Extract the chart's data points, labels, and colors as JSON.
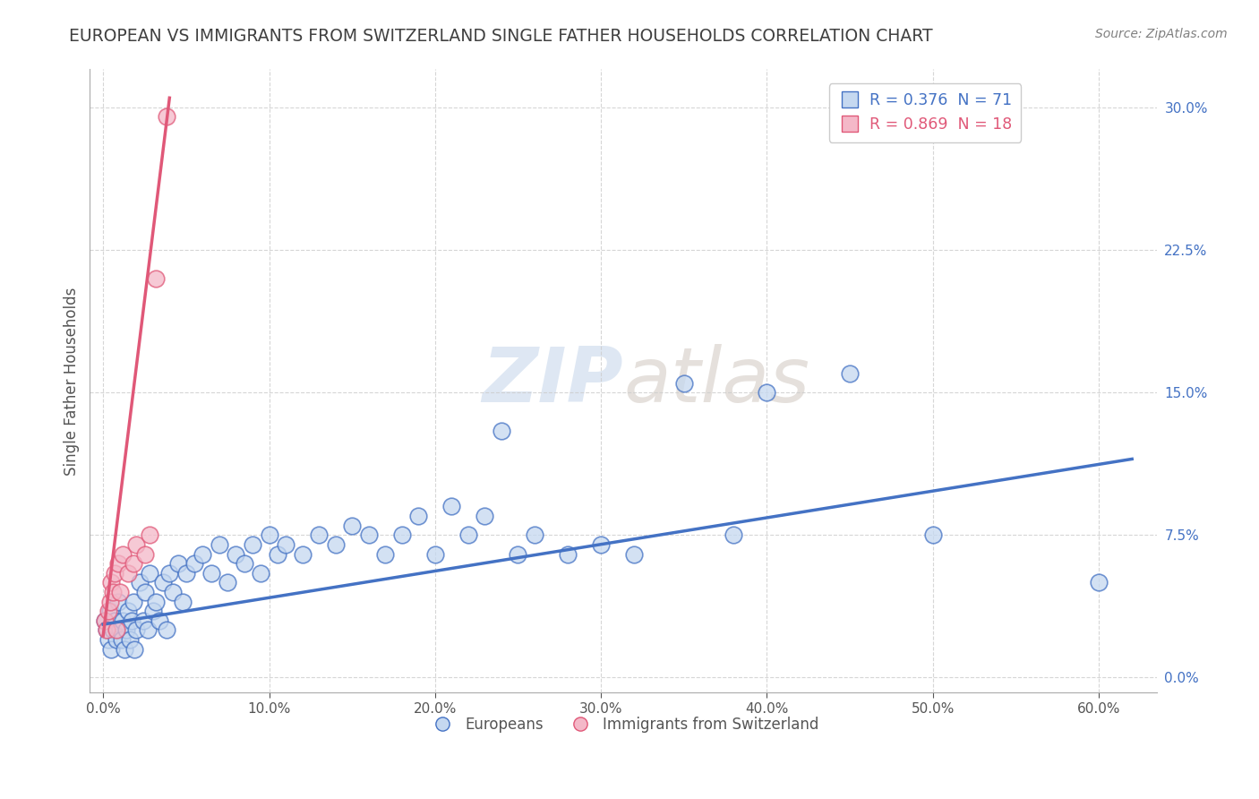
{
  "title": "EUROPEAN VS IMMIGRANTS FROM SWITZERLAND SINGLE FATHER HOUSEHOLDS CORRELATION CHART",
  "source": "Source: ZipAtlas.com",
  "xlabel_tick_vals": [
    0.0,
    0.1,
    0.2,
    0.3,
    0.4,
    0.5,
    0.6
  ],
  "ylabel_tick_vals": [
    0.0,
    0.075,
    0.15,
    0.225,
    0.3
  ],
  "xlim": [
    -0.008,
    0.635
  ],
  "ylim": [
    -0.008,
    0.32
  ],
  "europeans_scatter_x": [
    0.001,
    0.002,
    0.003,
    0.004,
    0.005,
    0.006,
    0.007,
    0.008,
    0.009,
    0.01,
    0.011,
    0.012,
    0.013,
    0.014,
    0.015,
    0.016,
    0.017,
    0.018,
    0.019,
    0.02,
    0.022,
    0.024,
    0.025,
    0.027,
    0.028,
    0.03,
    0.032,
    0.034,
    0.036,
    0.038,
    0.04,
    0.042,
    0.045,
    0.048,
    0.05,
    0.055,
    0.06,
    0.065,
    0.07,
    0.075,
    0.08,
    0.085,
    0.09,
    0.095,
    0.1,
    0.105,
    0.11,
    0.12,
    0.13,
    0.14,
    0.15,
    0.16,
    0.17,
    0.18,
    0.19,
    0.2,
    0.21,
    0.22,
    0.23,
    0.24,
    0.25,
    0.26,
    0.28,
    0.3,
    0.32,
    0.35,
    0.38,
    0.4,
    0.45,
    0.5,
    0.6
  ],
  "europeans_scatter_y": [
    0.03,
    0.025,
    0.02,
    0.035,
    0.015,
    0.025,
    0.03,
    0.02,
    0.04,
    0.025,
    0.02,
    0.03,
    0.015,
    0.025,
    0.035,
    0.02,
    0.03,
    0.04,
    0.015,
    0.025,
    0.05,
    0.03,
    0.045,
    0.025,
    0.055,
    0.035,
    0.04,
    0.03,
    0.05,
    0.025,
    0.055,
    0.045,
    0.06,
    0.04,
    0.055,
    0.06,
    0.065,
    0.055,
    0.07,
    0.05,
    0.065,
    0.06,
    0.07,
    0.055,
    0.075,
    0.065,
    0.07,
    0.065,
    0.075,
    0.07,
    0.08,
    0.075,
    0.065,
    0.075,
    0.085,
    0.065,
    0.09,
    0.075,
    0.085,
    0.13,
    0.065,
    0.075,
    0.065,
    0.07,
    0.065,
    0.155,
    0.075,
    0.15,
    0.16,
    0.075,
    0.05
  ],
  "swiss_scatter_x": [
    0.001,
    0.002,
    0.003,
    0.004,
    0.005,
    0.006,
    0.007,
    0.008,
    0.009,
    0.01,
    0.012,
    0.015,
    0.018,
    0.02,
    0.025,
    0.028,
    0.032,
    0.038
  ],
  "swiss_scatter_y": [
    0.03,
    0.025,
    0.035,
    0.04,
    0.05,
    0.045,
    0.055,
    0.025,
    0.06,
    0.045,
    0.065,
    0.055,
    0.06,
    0.07,
    0.065,
    0.075,
    0.21,
    0.295
  ],
  "blue_line_x": [
    0.0,
    0.62
  ],
  "blue_line_y": [
    0.028,
    0.115
  ],
  "pink_line_x": [
    0.0,
    0.04
  ],
  "pink_line_y": [
    0.022,
    0.305
  ],
  "blue_color": "#4472c4",
  "pink_color": "#e05878",
  "blue_scatter_color": "#c5d8f0",
  "pink_scatter_color": "#f4b8c8",
  "watermark_zip": "ZIP",
  "watermark_atlas": "atlas",
  "background_color": "#ffffff",
  "grid_color": "#cccccc",
  "title_color": "#404040",
  "axis_label": "Single Father Households",
  "title_fontsize": 13.5,
  "tick_fontsize": 11,
  "legend_fontsize": 12.5
}
